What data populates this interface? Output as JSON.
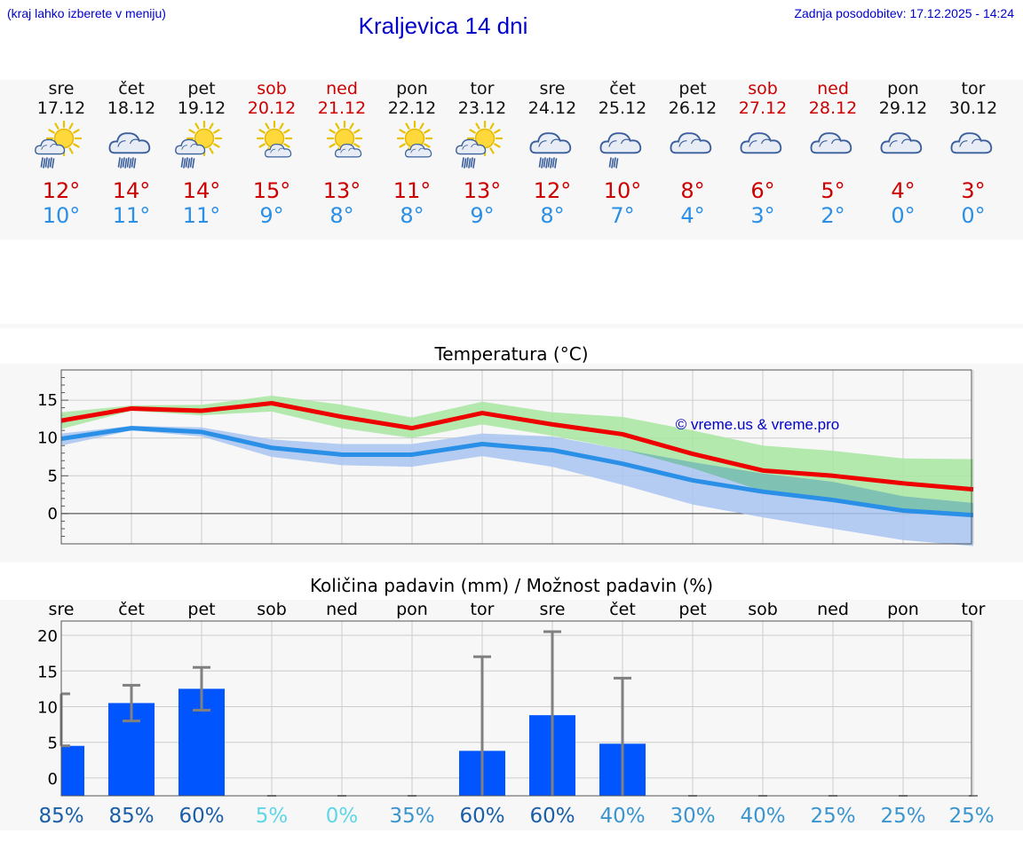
{
  "header": {
    "hint": "(kraj lahko izberete v meniju)",
    "title": "Kraljevica 14 dni",
    "updated": "Zadnja posodobitev: 17.12.2025 - 14:24"
  },
  "days": [
    {
      "name": "sre",
      "date": "17.12",
      "weekend": false,
      "icon": "sun-cloud-rain",
      "max": "12°",
      "min": "10°"
    },
    {
      "name": "čet",
      "date": "18.12",
      "weekend": false,
      "icon": "cloud-rain",
      "max": "14°",
      "min": "11°"
    },
    {
      "name": "pet",
      "date": "19.12",
      "weekend": false,
      "icon": "sun-cloud-rain",
      "max": "14°",
      "min": "11°"
    },
    {
      "name": "sob",
      "date": "20.12",
      "weekend": true,
      "icon": "sun-cloud",
      "max": "15°",
      "min": "9°"
    },
    {
      "name": "ned",
      "date": "21.12",
      "weekend": true,
      "icon": "sun-cloud",
      "max": "13°",
      "min": "8°"
    },
    {
      "name": "pon",
      "date": "22.12",
      "weekend": false,
      "icon": "sun-cloud",
      "max": "11°",
      "min": "8°"
    },
    {
      "name": "tor",
      "date": "23.12",
      "weekend": false,
      "icon": "sun-cloud-rain",
      "max": "13°",
      "min": "9°"
    },
    {
      "name": "sre",
      "date": "24.12",
      "weekend": false,
      "icon": "cloud-rain",
      "max": "12°",
      "min": "8°"
    },
    {
      "name": "čet",
      "date": "25.12",
      "weekend": false,
      "icon": "cloud-light-rain",
      "max": "10°",
      "min": "7°"
    },
    {
      "name": "pet",
      "date": "26.12",
      "weekend": false,
      "icon": "cloud",
      "max": "8°",
      "min": "4°"
    },
    {
      "name": "sob",
      "date": "27.12",
      "weekend": true,
      "icon": "cloud",
      "max": "6°",
      "min": "3°"
    },
    {
      "name": "ned",
      "date": "28.12",
      "weekend": true,
      "icon": "cloud",
      "max": "5°",
      "min": "2°"
    },
    {
      "name": "pon",
      "date": "29.12",
      "weekend": false,
      "icon": "cloud",
      "max": "4°",
      "min": "0°"
    },
    {
      "name": "tor",
      "date": "30.12",
      "weekend": false,
      "icon": "cloud",
      "max": "3°",
      "min": "0°"
    }
  ],
  "colors": {
    "max_line": "#ee0000",
    "max_band": "#a8e6a0",
    "min_line": "#2a8fe6",
    "min_band": "#a8c4f0",
    "bar": "#0055ff",
    "whisker": "#808080",
    "grid": "#cccccc",
    "weekend_text": "#cc0000"
  },
  "chart_data": [
    {
      "type": "line",
      "title": "Temperatura (°C)",
      "categories": [
        "sre",
        "čet",
        "pet",
        "sob",
        "ned",
        "pon",
        "tor",
        "sre",
        "čet",
        "pet",
        "sob",
        "ned",
        "pon",
        "tor"
      ],
      "ylim": [
        -4,
        19
      ],
      "yticks": [
        0,
        5,
        10,
        15
      ],
      "watermark": "© vreme.us & vreme.pro",
      "series": [
        {
          "name": "max",
          "values": [
            12.3,
            13.9,
            13.6,
            14.6,
            12.8,
            11.3,
            13.3,
            11.8,
            10.5,
            7.9,
            5.7,
            5.0,
            4.0,
            3.2
          ],
          "band_low": [
            11.2,
            13.6,
            13.0,
            13.5,
            11.3,
            10.0,
            11.8,
            10.3,
            8.5,
            6.0,
            3.0,
            1.5,
            0.5,
            -0.2
          ],
          "band_high": [
            13.4,
            14.3,
            14.4,
            15.6,
            14.4,
            12.7,
            14.8,
            13.4,
            12.8,
            11.0,
            9.0,
            8.3,
            7.3,
            7.2
          ]
        },
        {
          "name": "min",
          "values": [
            9.9,
            11.3,
            10.8,
            8.7,
            7.8,
            7.8,
            9.2,
            8.4,
            6.6,
            4.4,
            2.9,
            1.8,
            0.4,
            -0.2
          ],
          "band_low": [
            9.0,
            11.0,
            10.2,
            7.5,
            6.4,
            6.2,
            7.6,
            6.2,
            3.8,
            1.2,
            -0.5,
            -2.0,
            -3.5,
            -4.3
          ],
          "band_high": [
            10.6,
            11.6,
            11.4,
            9.8,
            9.2,
            9.2,
            10.6,
            10.2,
            8.5,
            6.8,
            5.3,
            4.2,
            2.3,
            1.4
          ]
        }
      ]
    },
    {
      "type": "bar",
      "title": "Količina padavin (mm) / Možnost padavin (%)",
      "categories": [
        "sre",
        "čet",
        "pet",
        "sob",
        "ned",
        "pon",
        "tor",
        "sre",
        "čet",
        "pet",
        "sob",
        "ned",
        "pon",
        "tor"
      ],
      "ylim": [
        -2.5,
        22
      ],
      "yticks": [
        0,
        5,
        10,
        15,
        20
      ],
      "values": [
        4.5,
        10.5,
        12.5,
        0,
        0,
        0,
        3.8,
        8.8,
        4.8,
        0,
        0,
        0,
        0,
        0
      ],
      "err_low": [
        4.5,
        8,
        9.5,
        0,
        0,
        0,
        0,
        0,
        0,
        0,
        0,
        0,
        0,
        0
      ],
      "err_high": [
        11.8,
        13,
        15.5,
        0,
        0,
        0,
        17,
        20.5,
        14,
        0,
        0,
        0,
        0,
        0
      ],
      "probabilities": [
        "85%",
        "85%",
        "60%",
        "5%",
        "0%",
        "35%",
        "60%",
        "60%",
        "40%",
        "30%",
        "40%",
        "25%",
        "25%",
        "25%"
      ],
      "probability_colors": [
        "#1a5fa8",
        "#1a5fa8",
        "#1a5fa8",
        "#5fd6e6",
        "#5fd6e6",
        "#3a95cf",
        "#1a5fa8",
        "#1a5fa8",
        "#3a95cf",
        "#3a95cf",
        "#3a95cf",
        "#3a95cf",
        "#3a95cf",
        "#3a95cf"
      ]
    }
  ]
}
